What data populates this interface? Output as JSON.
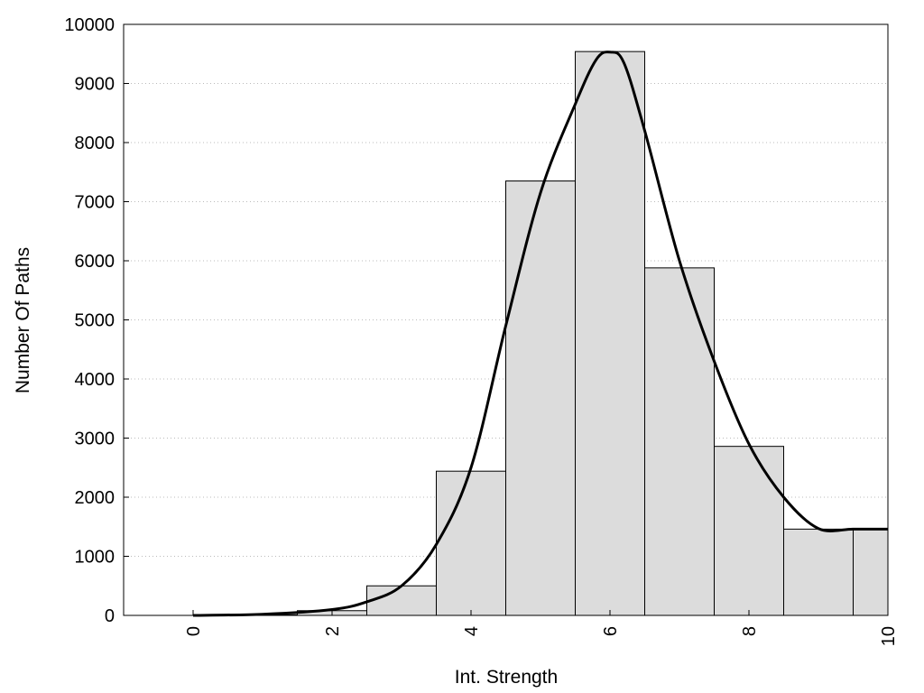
{
  "chart_data": {
    "type": "bar",
    "title": "",
    "xlabel": "Int. Strength",
    "ylabel": "Number Of Paths",
    "xlim": [
      -1,
      10
    ],
    "ylim": [
      0,
      10000
    ],
    "grid": "horizontal-dotted",
    "colors": {
      "bar_fill": "#dcdcdc",
      "bar_edge": "#000000",
      "curve": "#000000",
      "grid": "#bbbbbb"
    },
    "x_ticks": [
      "0",
      "2",
      "4",
      "6",
      "8",
      "10"
    ],
    "y_ticks": [
      "0",
      "1000",
      "2000",
      "3000",
      "4000",
      "5000",
      "6000",
      "7000",
      "8000",
      "9000",
      "10000"
    ],
    "bins": [
      {
        "center": 0,
        "value": 0
      },
      {
        "center": 1,
        "value": 10
      },
      {
        "center": 2,
        "value": 80
      },
      {
        "center": 3,
        "value": 500
      },
      {
        "center": 4,
        "value": 2440
      },
      {
        "center": 5,
        "value": 7350
      },
      {
        "center": 6,
        "value": 9540
      },
      {
        "center": 7,
        "value": 5880
      },
      {
        "center": 8,
        "value": 2860
      },
      {
        "center": 9,
        "value": 1460
      },
      {
        "center": 10,
        "value": 1460
      }
    ],
    "curve": {
      "x": [
        0,
        1,
        2,
        2.5,
        3,
        3.5,
        4,
        4.5,
        5,
        5.5,
        5.8,
        6,
        6.2,
        6.5,
        7,
        7.5,
        8,
        8.5,
        9,
        9.5,
        10
      ],
      "y": [
        0,
        20,
        100,
        230,
        500,
        1200,
        2500,
        4900,
        7150,
        8650,
        9400,
        9530,
        9350,
        8200,
        6000,
        4300,
        2900,
        2000,
        1470,
        1460,
        1460
      ]
    }
  }
}
